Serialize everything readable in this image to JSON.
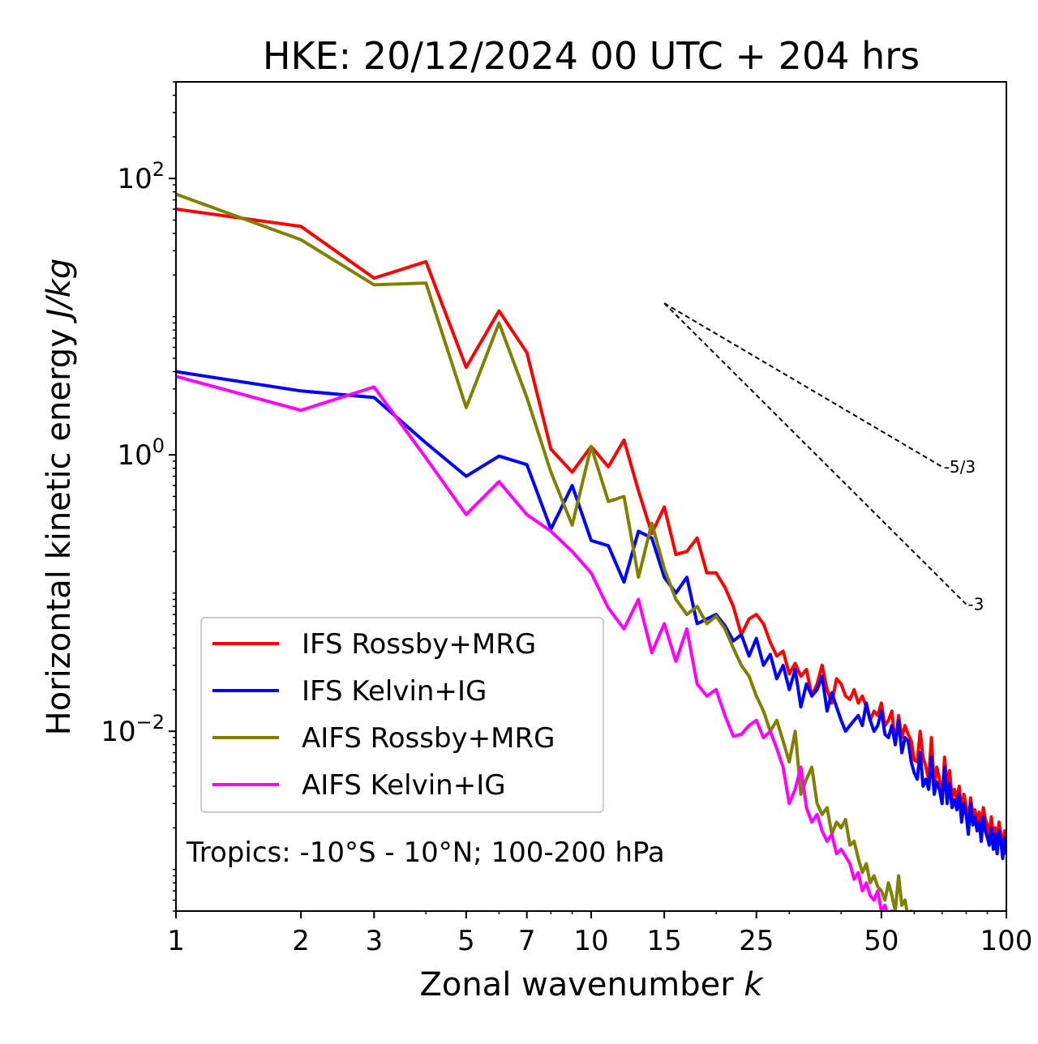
{
  "chart_data": {
    "type": "line",
    "title": "HKE: 20/12/2024 00 UTC + 204 hrs",
    "xlabel_prefix": "Zonal wavenumber ",
    "xlabel_var": "k",
    "ylabel_prefix": "Horizontal kinetic energy ",
    "ylabel_unit": "J/kg",
    "xscale": "log",
    "yscale": "log",
    "xlim": [
      1,
      100
    ],
    "ylim": [
      0.0005,
      500
    ],
    "xticks": [
      1,
      2,
      3,
      5,
      7,
      10,
      15,
      25,
      50,
      100
    ],
    "xtick_labels": [
      "1",
      "2",
      "3",
      "5",
      "7",
      "10",
      "15",
      "25",
      "50",
      "100"
    ],
    "yticks": [
      0.01,
      1,
      100
    ],
    "ytick_labels": [
      {
        "base": "10",
        "exp": "−2"
      },
      {
        "base": "10",
        "exp": "0"
      },
      {
        "base": "10",
        "exp": "2"
      }
    ],
    "grid": false,
    "legend_position": "lower-left",
    "annotation": "Tropics: -10°S - 10°N; 100-200 hPa",
    "reference_lines": [
      {
        "label": "-5/3",
        "x": [
          15,
          70
        ],
        "y": [
          12.5,
          0.82
        ]
      },
      {
        "label": "-3",
        "x": [
          15,
          80
        ],
        "y": [
          12.5,
          0.083
        ]
      }
    ],
    "series": [
      {
        "name": "IFS Rossby+MRG",
        "color": "#ff0000",
        "x": [
          1,
          2,
          3,
          4,
          5,
          6,
          7,
          8,
          9,
          10,
          11,
          12,
          13,
          14,
          15,
          16,
          17,
          18,
          19,
          20,
          21,
          22,
          23,
          24,
          25,
          26,
          27,
          28,
          29,
          30,
          31,
          32,
          33,
          34,
          35,
          36,
          37,
          38,
          39,
          40,
          41,
          42,
          43,
          44,
          45,
          46,
          47,
          48,
          49,
          50,
          51,
          52,
          53,
          54,
          55,
          56,
          57,
          58,
          59,
          60,
          61,
          62,
          63,
          64,
          65,
          66,
          67,
          68,
          69,
          70,
          71,
          72,
          73,
          74,
          75,
          76,
          77,
          78,
          79,
          80,
          81,
          82,
          83,
          84,
          85,
          86,
          87,
          88,
          89,
          90,
          91,
          92,
          93,
          94,
          95,
          96,
          97,
          98,
          99,
          100
        ],
        "y": [
          60,
          45,
          19,
          25,
          4.3,
          11,
          5.5,
          1.1,
          0.75,
          1.15,
          0.82,
          1.28,
          0.55,
          0.27,
          0.42,
          0.19,
          0.2,
          0.25,
          0.14,
          0.14,
          0.11,
          0.08,
          0.05,
          0.065,
          0.07,
          0.06,
          0.044,
          0.035,
          0.038,
          0.026,
          0.031,
          0.025,
          0.028,
          0.018,
          0.022,
          0.03,
          0.02,
          0.016,
          0.024,
          0.022,
          0.018,
          0.017,
          0.02,
          0.016,
          0.018,
          0.015,
          0.012,
          0.014,
          0.013,
          0.016,
          0.011,
          0.012,
          0.014,
          0.008,
          0.013,
          0.009,
          0.011,
          0.0095,
          0.0085,
          0.0062,
          0.006,
          0.01,
          0.0065,
          0.0055,
          0.0045,
          0.009,
          0.004,
          0.0055,
          0.0045,
          0.003,
          0.0065,
          0.004,
          0.0052,
          0.0033,
          0.0038,
          0.0032,
          0.004,
          0.0026,
          0.0035,
          0.0029,
          0.0021,
          0.0033,
          0.0025,
          0.0027,
          0.0022,
          0.0026,
          0.0019,
          0.0028,
          0.0023,
          0.0021,
          0.0018,
          0.0024,
          0.0017,
          0.002,
          0.0016,
          0.0022,
          0.0018,
          0.0015,
          0.0019,
          0.0016
        ]
      },
      {
        "name": "IFS Kelvin+IG",
        "color": "#0000ff",
        "x": [
          1,
          2,
          3,
          4,
          5,
          6,
          7,
          8,
          9,
          10,
          11,
          12,
          13,
          14,
          15,
          16,
          17,
          18,
          19,
          20,
          21,
          22,
          23,
          24,
          25,
          26,
          27,
          28,
          29,
          30,
          31,
          32,
          33,
          34,
          35,
          36,
          37,
          38,
          39,
          40,
          41,
          42,
          43,
          44,
          45,
          46,
          47,
          48,
          49,
          50,
          51,
          52,
          53,
          54,
          55,
          56,
          57,
          58,
          59,
          60,
          61,
          62,
          63,
          64,
          65,
          66,
          67,
          68,
          69,
          70,
          71,
          72,
          73,
          74,
          75,
          76,
          77,
          78,
          79,
          80,
          81,
          82,
          83,
          84,
          85,
          86,
          87,
          88,
          89,
          90,
          91,
          92,
          93,
          94,
          95,
          96,
          97,
          98,
          99,
          100
        ],
        "y": [
          4,
          2.9,
          2.6,
          1.22,
          0.7,
          0.98,
          0.85,
          0.29,
          0.6,
          0.24,
          0.22,
          0.12,
          0.28,
          0.25,
          0.13,
          0.1,
          0.13,
          0.06,
          0.065,
          0.07,
          0.058,
          0.045,
          0.05,
          0.035,
          0.047,
          0.03,
          0.036,
          0.024,
          0.03,
          0.02,
          0.028,
          0.015,
          0.022,
          0.018,
          0.02,
          0.025,
          0.014,
          0.019,
          0.015,
          0.012,
          0.01,
          0.011,
          0.012,
          0.013,
          0.011,
          0.016,
          0.012,
          0.01,
          0.011,
          0.014,
          0.0095,
          0.009,
          0.011,
          0.008,
          0.012,
          0.007,
          0.009,
          0.0085,
          0.006,
          0.005,
          0.0045,
          0.007,
          0.004,
          0.0045,
          0.0038,
          0.0065,
          0.0035,
          0.0043,
          0.0038,
          0.003,
          0.0055,
          0.003,
          0.0042,
          0.0028,
          0.0032,
          0.0027,
          0.0035,
          0.0022,
          0.003,
          0.0025,
          0.0018,
          0.003,
          0.0021,
          0.0024,
          0.0019,
          0.0022,
          0.0016,
          0.0024,
          0.0019,
          0.0017,
          0.0015,
          0.002,
          0.0014,
          0.0018,
          0.0013,
          0.0019,
          0.0016,
          0.0012,
          0.0017,
          0.0013
        ]
      },
      {
        "name": "AIFS Rossby+MRG",
        "color": "#808000",
        "x": [
          1,
          2,
          3,
          4,
          5,
          6,
          7,
          8,
          9,
          10,
          11,
          12,
          13,
          14,
          15,
          16,
          17,
          18,
          19,
          20,
          21,
          22,
          23,
          24,
          25,
          26,
          27,
          28,
          29,
          30,
          31,
          32,
          33,
          34,
          35,
          36,
          37,
          38,
          39,
          40,
          41,
          42,
          43,
          44,
          45,
          46,
          47,
          48,
          49,
          50,
          51,
          52,
          53,
          54,
          55,
          56,
          57,
          58,
          59,
          60
        ],
        "y": [
          77,
          36,
          17,
          17.5,
          2.2,
          9,
          2.6,
          0.75,
          0.31,
          1.15,
          0.46,
          0.5,
          0.13,
          0.32,
          0.15,
          0.09,
          0.07,
          0.08,
          0.06,
          0.068,
          0.055,
          0.04,
          0.03,
          0.025,
          0.018,
          0.014,
          0.01,
          0.012,
          0.0085,
          0.006,
          0.01,
          0.0035,
          0.0045,
          0.0055,
          0.003,
          0.0025,
          0.0028,
          0.0018,
          0.0022,
          0.002,
          0.0023,
          0.0015,
          0.0016,
          0.0012,
          0.00095,
          0.0011,
          0.0008,
          0.0009,
          0.00075,
          0.0007,
          0.0006,
          0.0008,
          0.00065,
          0.0005,
          0.0009,
          0.00055,
          0.0006,
          0.00045,
          0.0005,
          0.0004
        ]
      },
      {
        "name": "AIFS Kelvin+IG",
        "color": "#ff00ff",
        "x": [
          1,
          2,
          3,
          4,
          5,
          6,
          7,
          8,
          9,
          10,
          11,
          12,
          13,
          14,
          15,
          16,
          17,
          18,
          19,
          20,
          21,
          22,
          23,
          24,
          25,
          26,
          27,
          28,
          29,
          30,
          31,
          32,
          33,
          34,
          35,
          36,
          37,
          38,
          39,
          40,
          41,
          42,
          43,
          44,
          45,
          46,
          47,
          48,
          49,
          50,
          51,
          52,
          53,
          54,
          55,
          56,
          57,
          58,
          59,
          60
        ],
        "y": [
          3.7,
          2.1,
          3.1,
          0.95,
          0.37,
          0.64,
          0.37,
          0.28,
          0.2,
          0.14,
          0.078,
          0.055,
          0.09,
          0.037,
          0.06,
          0.032,
          0.055,
          0.022,
          0.018,
          0.02,
          0.013,
          0.0092,
          0.0095,
          0.011,
          0.012,
          0.009,
          0.01,
          0.0075,
          0.0055,
          0.003,
          0.0038,
          0.0055,
          0.0028,
          0.0022,
          0.0025,
          0.0019,
          0.0016,
          0.0018,
          0.0013,
          0.0014,
          0.00125,
          0.0011,
          0.00085,
          0.00095,
          0.0007,
          0.0008,
          0.00065,
          0.0006,
          0.0007,
          0.0005,
          0.00055,
          0.00045,
          0.0005,
          0.0004,
          0.00048,
          0.00038,
          0.0004,
          0.00035,
          0.00038,
          0.0003
        ]
      }
    ]
  }
}
